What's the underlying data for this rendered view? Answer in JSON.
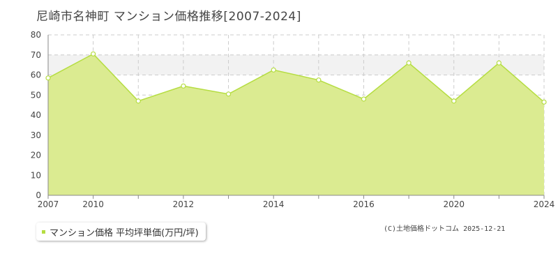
{
  "title": "尼崎市名神町 マンション価格推移[2007-2024]",
  "legend_label": "マンション価格 平均坪単価(万円/坪)",
  "credit": "(C)土地価格ドットコム 2025-12-21",
  "colors": {
    "fill": "#dbeb91",
    "line": "#b5dd41",
    "band": "#f2f2f2",
    "grid": "#cccccc",
    "axis": "#888888"
  },
  "chart_data": {
    "type": "area",
    "title": "尼崎市名神町 マンション価格推移[2007-2024]",
    "xlabel": "",
    "ylabel": "",
    "x": [
      2007,
      2010,
      2011,
      2012,
      2013,
      2014,
      2015,
      2016,
      2017,
      2020,
      2021,
      2024
    ],
    "x_positions": [
      2007,
      2009,
      2011,
      2013,
      2015,
      2017,
      2019,
      2021,
      2023,
      2025,
      2027,
      2029
    ],
    "series": [
      {
        "name": "マンション価格 平均坪単価(万円/坪)",
        "values": [
          58.5,
          70.5,
          47,
          54.5,
          50.5,
          62.5,
          57.5,
          48,
          66,
          47,
          66,
          46.5
        ]
      }
    ],
    "ylim": [
      0,
      80
    ],
    "yticks": [
      0,
      10,
      20,
      30,
      40,
      50,
      60,
      70,
      80
    ],
    "xtick_labels": [
      "2007",
      "2010",
      "2012",
      "2014",
      "2016",
      "2020",
      "2024"
    ],
    "grid": true,
    "shaded_band": [
      60,
      70
    ],
    "legend_position": "bottom-left"
  }
}
